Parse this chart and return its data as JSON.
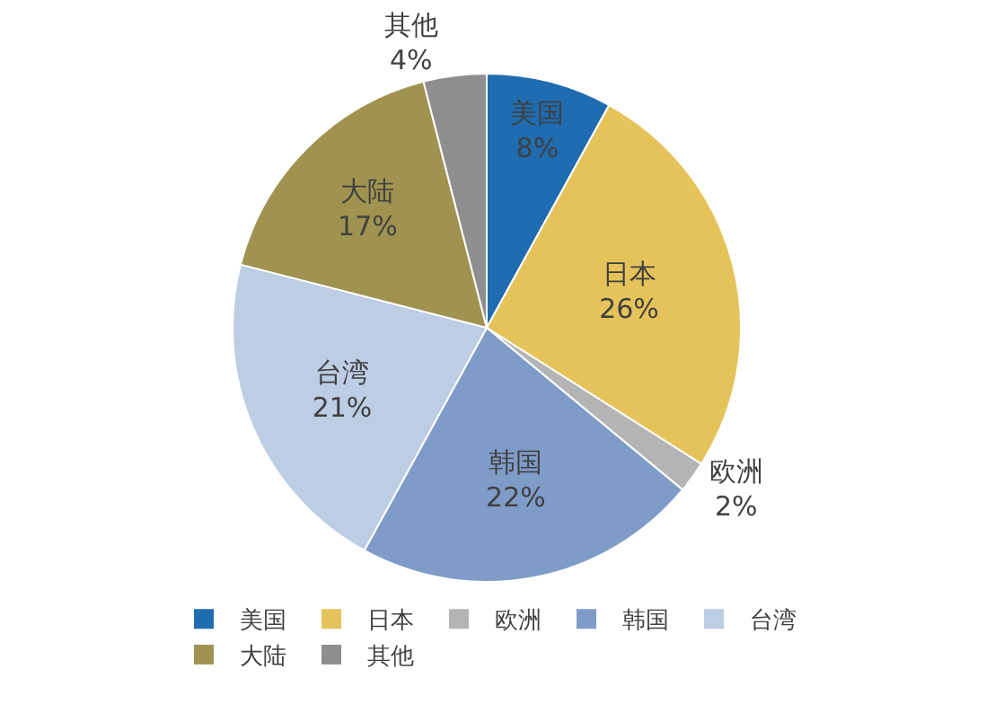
{
  "chart_data": {
    "type": "pie",
    "categories": [
      "美国",
      "日本",
      "欧洲",
      "韩国",
      "台湾",
      "大陆",
      "其他"
    ],
    "values": [
      8,
      26,
      2,
      22,
      21,
      17,
      4
    ],
    "value_labels": [
      "8%",
      "26%",
      "2%",
      "22%",
      "21%",
      "17%",
      "4%"
    ],
    "colors": [
      "#1f6cb0",
      "#e6c35a",
      "#b4b4b4",
      "#7f9cc9",
      "#bccde4",
      "#a09350",
      "#8e8e8e"
    ],
    "legend": "bottom"
  }
}
